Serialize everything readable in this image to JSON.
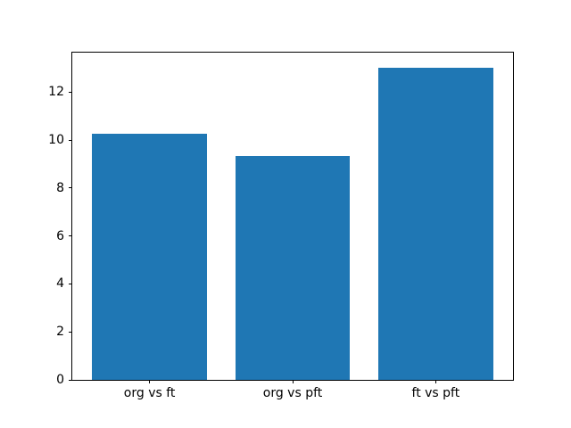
{
  "chart_data": {
    "type": "bar",
    "title": "",
    "xlabel": "",
    "ylabel": "",
    "categories": [
      "org vs ft",
      "org vs pft",
      "ft vs pft"
    ],
    "values": [
      10.25,
      9.35,
      13.0
    ],
    "yticks": [
      0,
      2,
      4,
      6,
      8,
      10,
      12
    ],
    "ylim": [
      0,
      13.65
    ],
    "xlim": [
      -0.54,
      2.54
    ],
    "bar_width": 0.8,
    "bar_color": "#1f77b4",
    "spine_color": "#000000",
    "background_color": "#ffffff",
    "grid": false,
    "legend_visible": false
  }
}
